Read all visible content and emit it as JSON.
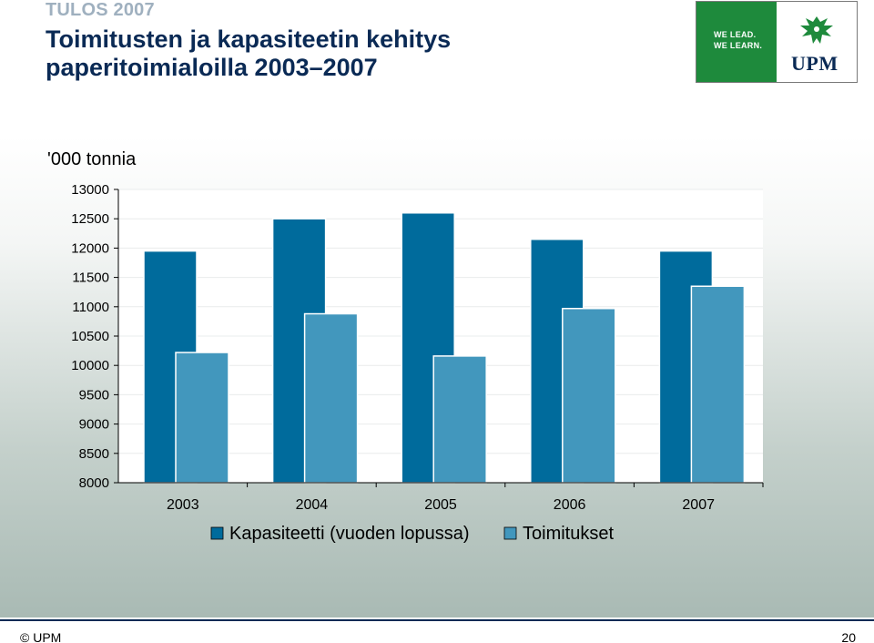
{
  "header": {
    "kicker": "TULOS 2007",
    "title": "Toimitusten ja kapasiteetin kehitys paperitoimialoilla 2003–2007"
  },
  "logo": {
    "slogan_line1": "WE LEAD.",
    "slogan_line2": "WE LEARN.",
    "wordmark": "UPM",
    "green": "#1e8a3c"
  },
  "chart_data": {
    "type": "bar",
    "unit_label": "'000 tonnia",
    "categories": [
      "2003",
      "2004",
      "2005",
      "2006",
      "2007"
    ],
    "series": [
      {
        "name": "Kapasiteetti (vuoden lopussa)",
        "values": [
          11950,
          12500,
          12600,
          12150,
          11950
        ],
        "color": "#006b9c"
      },
      {
        "name": "Toimitukset",
        "values": [
          10220,
          10880,
          10160,
          10970,
          11350
        ],
        "color": "#4297bd"
      }
    ],
    "ylim": [
      8000,
      13000
    ],
    "yticks": [
      "13000",
      "12500",
      "12000",
      "11500",
      "11000",
      "10500",
      "10000",
      "9500",
      "9000",
      "8500",
      "8000"
    ],
    "grid": true,
    "legend": "bottom"
  },
  "footer": {
    "copyright": "© UPM",
    "page": "20"
  }
}
